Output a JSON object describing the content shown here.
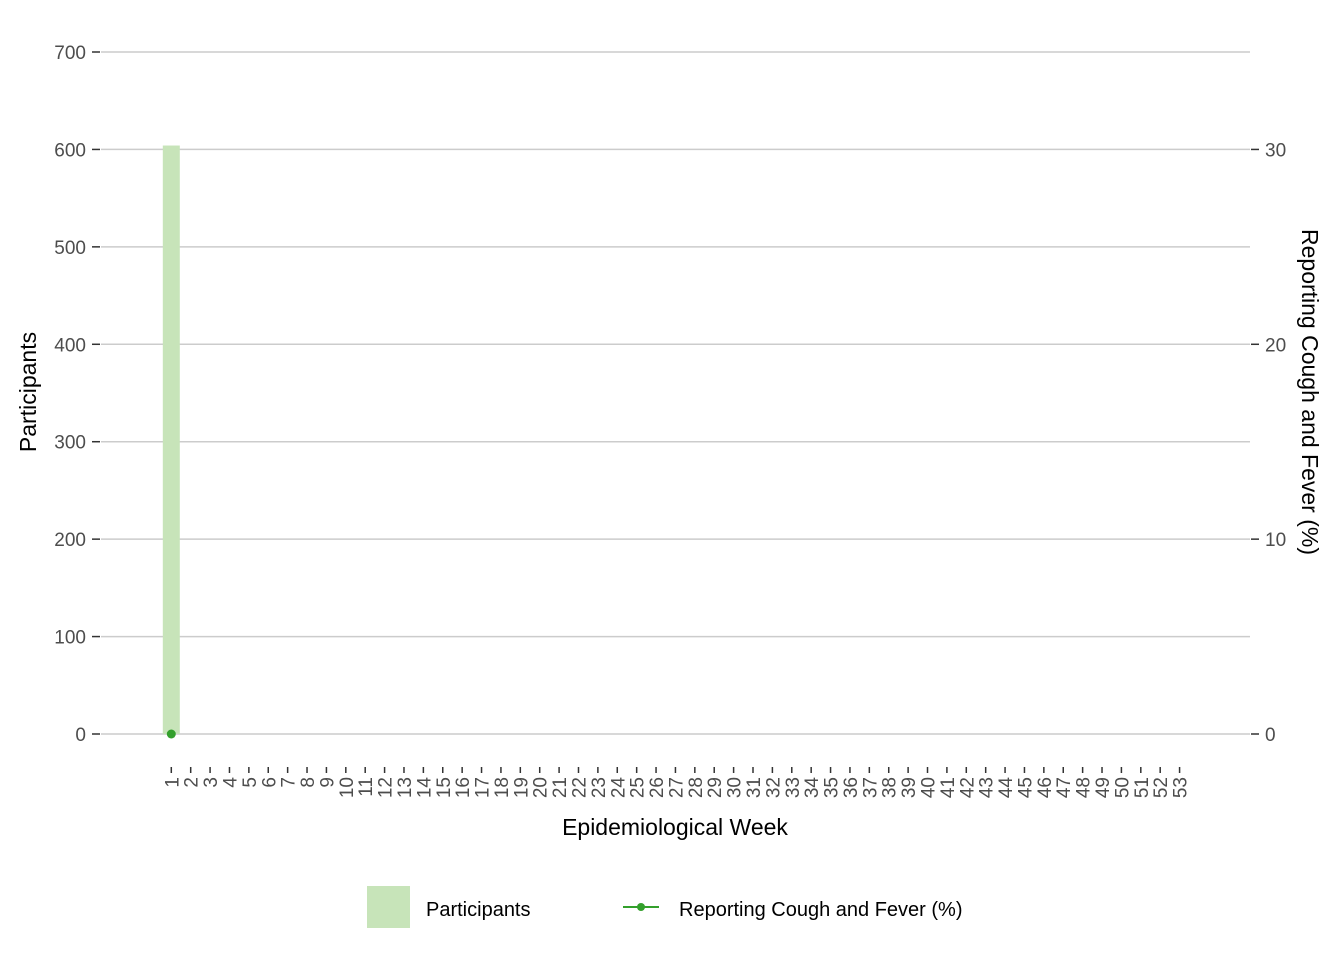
{
  "chart_data": {
    "type": "bar+line",
    "title": "",
    "xlabel": "Epidemiological Week",
    "ylabel": "Participants",
    "y2label": "Reporting Cough and Fever (%)",
    "ylim": [
      0,
      700
    ],
    "y2lim": [
      0,
      35
    ],
    "yticks": [
      0,
      100,
      200,
      300,
      400,
      500,
      600,
      700
    ],
    "y2ticks": [
      0,
      10,
      20,
      30
    ],
    "categories": [
      "1",
      "2",
      "3",
      "4",
      "5",
      "6",
      "7",
      "8",
      "9",
      "10",
      "11",
      "12",
      "13",
      "14",
      "15",
      "16",
      "17",
      "18",
      "19",
      "20",
      "21",
      "22",
      "23",
      "24",
      "25",
      "26",
      "27",
      "28",
      "29",
      "30",
      "31",
      "32",
      "33",
      "34",
      "35",
      "36",
      "37",
      "38",
      "39",
      "40",
      "41",
      "42",
      "43",
      "44",
      "45",
      "46",
      "47",
      "48",
      "49",
      "50",
      "51",
      "52",
      "53"
    ],
    "series": [
      {
        "name": "Participants",
        "kind": "bar",
        "axis": "left",
        "color": "#c7e4b9",
        "points": [
          {
            "x": "1",
            "y": 604
          }
        ]
      },
      {
        "name": "Reporting Cough and Fever (%)",
        "kind": "line",
        "axis": "right",
        "color": "#33a02c",
        "points": [
          {
            "x": "1",
            "y": 0
          }
        ]
      }
    ],
    "grid": true,
    "legend": "bottom"
  }
}
